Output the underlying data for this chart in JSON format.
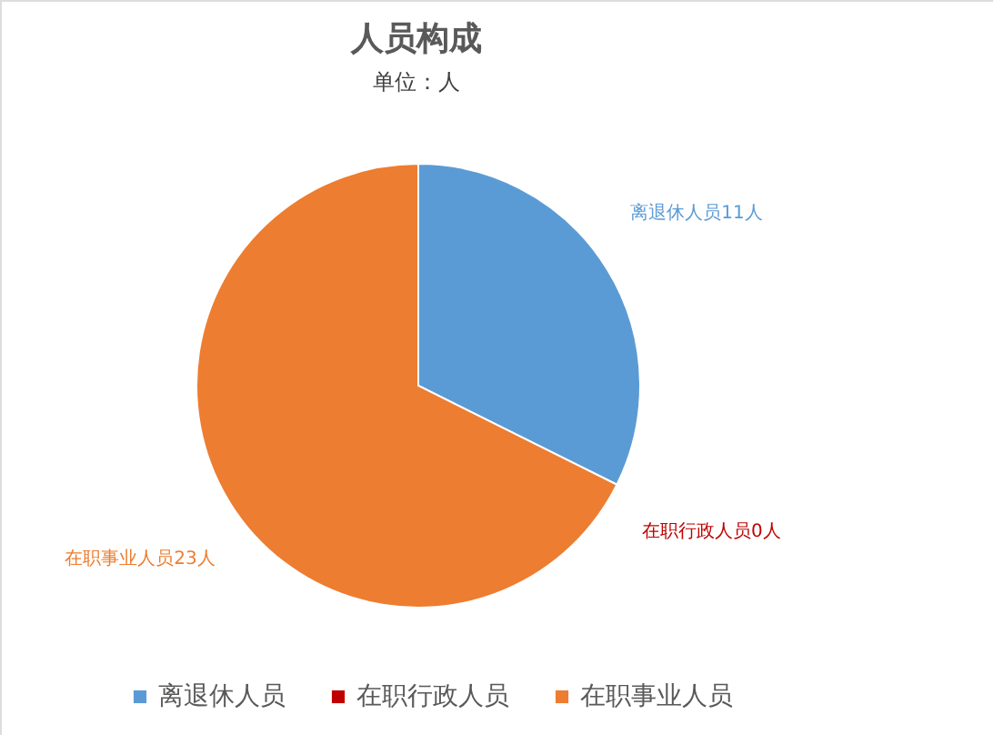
{
  "chart_data": {
    "type": "pie",
    "title": "人员构成",
    "subtitle": "单位：人",
    "categories": [
      "离退休人员",
      "在职行政人员",
      "在职事业人员"
    ],
    "values": [
      11,
      0,
      23
    ],
    "colors": [
      "#5b9bd5",
      "#c00000",
      "#ed7d31"
    ],
    "value_labels": [
      "离退休人员11人",
      "在职行政人员0人",
      "在职事业人员23人"
    ],
    "legend": "bottom"
  }
}
